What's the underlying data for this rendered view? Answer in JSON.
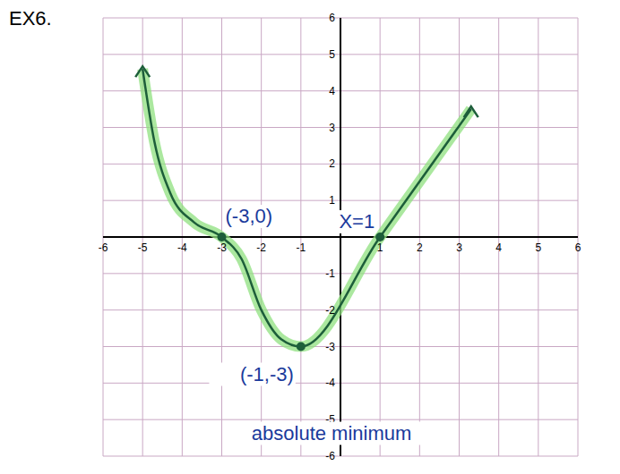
{
  "chart_data": {
    "type": "line",
    "title": "EX6.",
    "x": [
      -5,
      -4.7,
      -4.3,
      -3.7,
      -3,
      -2.5,
      -2,
      -1.5,
      -1,
      1,
      3.3
    ],
    "values": [
      4.6,
      2.6,
      1.2,
      0.4,
      0,
      -0.6,
      -2,
      -2.8,
      -3,
      0,
      3.5
    ],
    "color": "#1d5e3a",
    "xlim": [
      -6,
      6
    ],
    "xticks": [
      -6,
      -5,
      -4,
      -3,
      -2,
      -1,
      1,
      2,
      3,
      4,
      5,
      6
    ],
    "ylim": [
      -6,
      6
    ],
    "yticks": [
      -6,
      -5,
      -4,
      -3,
      -2,
      -1,
      1,
      2,
      3,
      4,
      5,
      6
    ],
    "grid": true,
    "annotations": [
      {
        "text": "(-3,0)",
        "x": -3,
        "y": 0
      },
      {
        "text": "(-1,-3)",
        "x": -1,
        "y": -3
      },
      {
        "text": "absolute minimum",
        "x": -1,
        "y": -3
      },
      {
        "text": "X=1",
        "x": 1,
        "y": 0
      }
    ]
  }
}
